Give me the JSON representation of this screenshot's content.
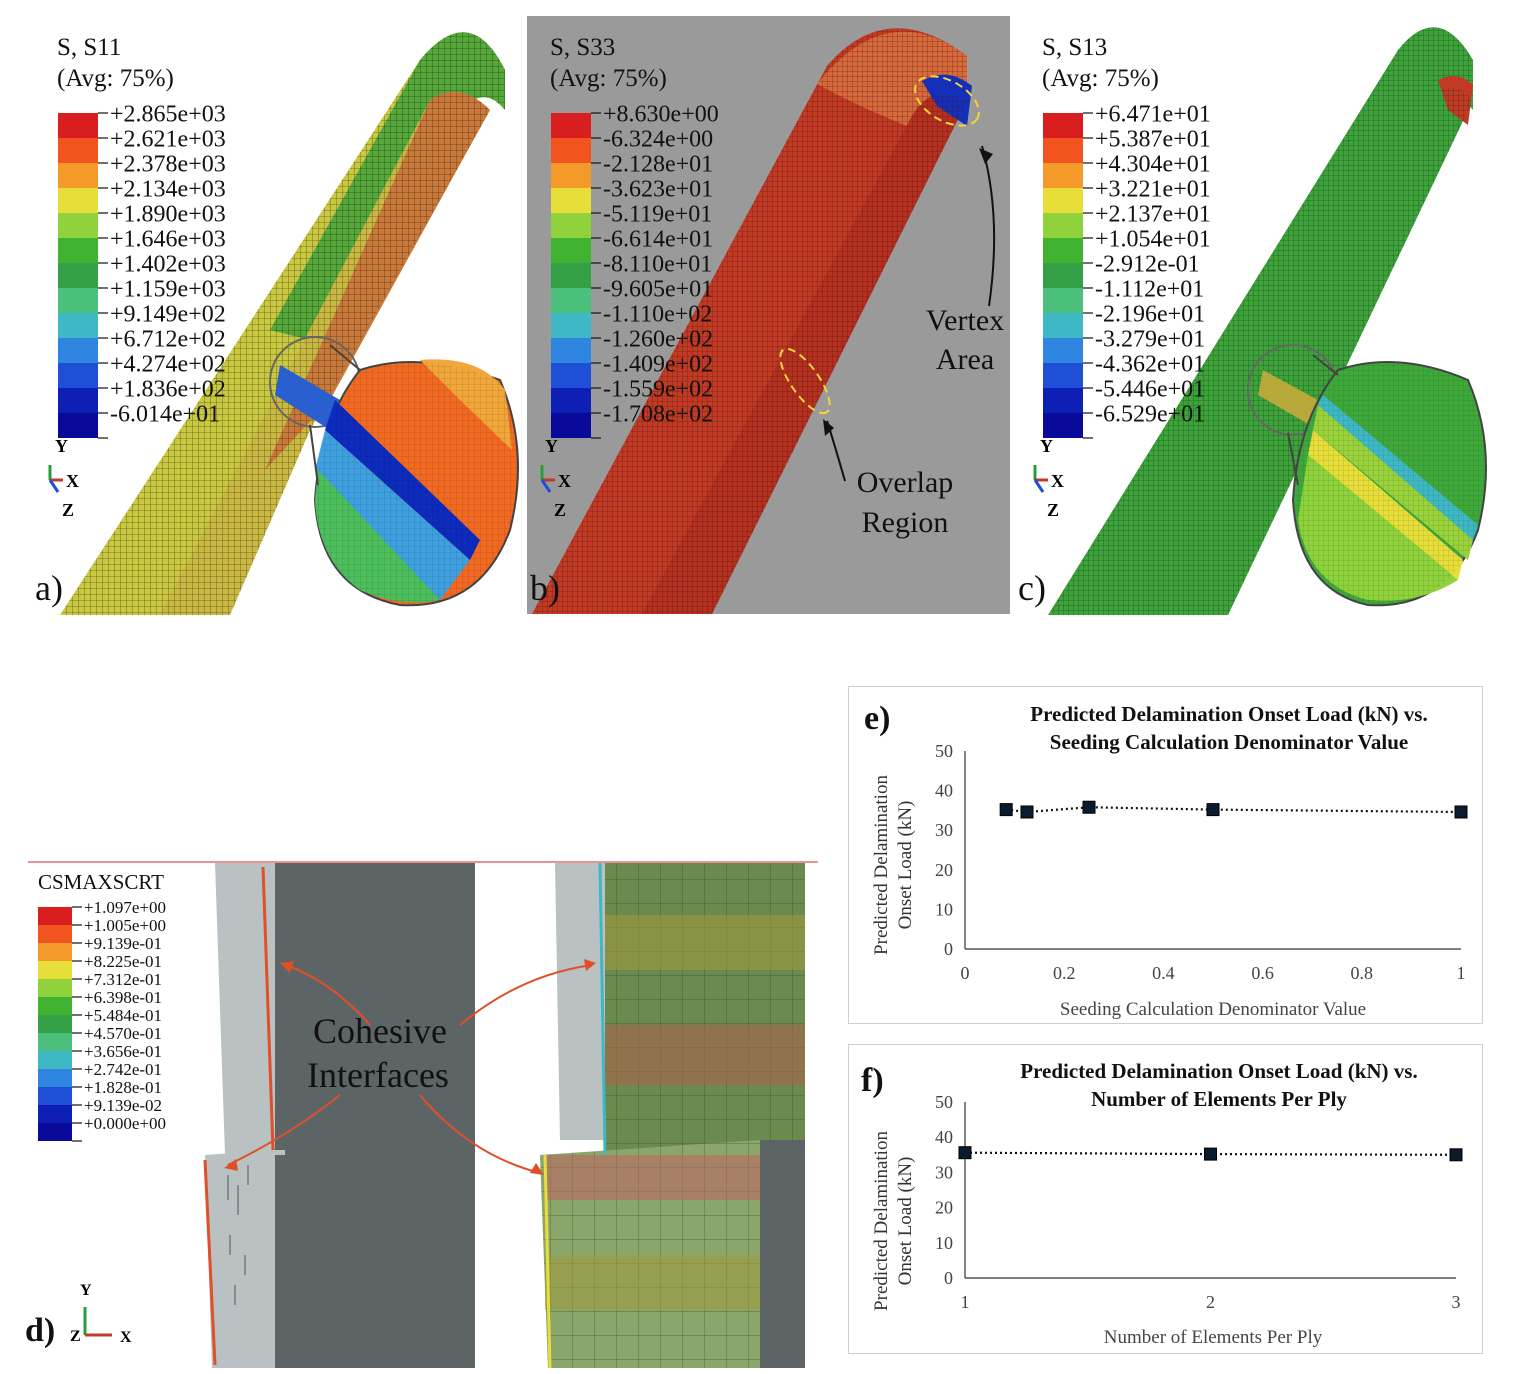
{
  "panels": {
    "a": {
      "letter": "a)",
      "title": "S, S11",
      "avg": "(Avg: 75%)",
      "legend": [
        "+2.865e+03",
        "+2.621e+03",
        "+2.378e+03",
        "+2.134e+03",
        "+1.890e+03",
        "+1.646e+03",
        "+1.402e+03",
        "+1.159e+03",
        "+9.149e+02",
        "+6.712e+02",
        "+4.274e+02",
        "+1.836e+02",
        "-6.014e+01"
      ]
    },
    "b": {
      "letter": "b)",
      "title": "S, S33",
      "avg": "(Avg: 75%)",
      "legend": [
        "+8.630e+00",
        "-6.324e+00",
        "-2.128e+01",
        "-3.623e+01",
        "-5.119e+01",
        "-6.614e+01",
        "-8.110e+01",
        "-9.605e+01",
        "-1.110e+02",
        "-1.260e+02",
        "-1.409e+02",
        "-1.559e+02",
        "-1.708e+02"
      ],
      "annotations": {
        "vertex_line1": "Vertex",
        "vertex_line2": "Area",
        "overlap_line1": "Overlap",
        "overlap_line2": "Region"
      }
    },
    "c": {
      "letter": "c)",
      "title": "S, S13",
      "avg": "(Avg: 75%)",
      "legend": [
        "+6.471e+01",
        "+5.387e+01",
        "+4.304e+01",
        "+3.221e+01",
        "+2.137e+01",
        "+1.054e+01",
        "-2.912e-01",
        "-1.112e+01",
        "-2.196e+01",
        "-3.279e+01",
        "-4.362e+01",
        "-5.446e+01",
        "-6.529e+01"
      ]
    },
    "d": {
      "letter": "d)",
      "title": "CSMAXSCRT",
      "legend": [
        "+1.097e+00",
        "+1.005e+00",
        "+9.139e-01",
        "+8.225e-01",
        "+7.312e-01",
        "+6.398e-01",
        "+5.484e-01",
        "+4.570e-01",
        "+3.656e-01",
        "+2.742e-01",
        "+1.828e-01",
        "+9.139e-02",
        "+0.000e+00"
      ],
      "label_line1": "Cohesive",
      "label_line2": "Interfaces"
    }
  },
  "triad": {
    "y": "Y",
    "x": "X",
    "z": "Z"
  },
  "legend_colors": [
    "#d81e1e",
    "#f2541f",
    "#f39a2a",
    "#e8de3a",
    "#8fd23b",
    "#3fb32f",
    "#33a046",
    "#4bbf7c",
    "#3fb8c6",
    "#2f86e0",
    "#1f4fd6",
    "#0d1fb4",
    "#0a0a9a"
  ],
  "chart_data": [
    {
      "type": "scatter",
      "panel_label": "e)",
      "title_line1": "Predicted Delamination Onset Load (kN) vs.",
      "title_line2": "Seeding Calculation Denominator Value",
      "xlabel": "Seeding Calculation Denominator Value",
      "ylabel_line1": "Predicted Delamination",
      "ylabel_line2": "Onset Load (kN)",
      "xlim": [
        0,
        1
      ],
      "ylim": [
        0,
        50
      ],
      "xticks": [
        "0",
        "0.2",
        "0.4",
        "0.6",
        "0.8",
        "1"
      ],
      "yticks": [
        "0",
        "10",
        "20",
        "30",
        "40",
        "50"
      ],
      "x": [
        0.083,
        0.125,
        0.25,
        0.5,
        1.0
      ],
      "y": [
        35.2,
        34.6,
        35.8,
        35.2,
        34.6
      ],
      "trendline": "dotted",
      "grid": false
    },
    {
      "type": "scatter",
      "panel_label": "f)",
      "title_line1": "Predicted Delamination Onset Load (kN) vs.",
      "title_line2": "Number of Elements Per Ply",
      "xlabel": "Number of Elements Per Ply",
      "ylabel_line1": "Predicted Delamination",
      "ylabel_line2": "Onset Load (kN)",
      "xlim": [
        1,
        3
      ],
      "ylim": [
        0,
        50
      ],
      "xticks": [
        "1",
        "2",
        "3"
      ],
      "yticks": [
        "0",
        "10",
        "20",
        "30",
        "40",
        "50"
      ],
      "x": [
        1,
        2,
        3
      ],
      "y": [
        35.6,
        35.2,
        35.0
      ],
      "trendline": "dotted",
      "grid": false
    }
  ]
}
